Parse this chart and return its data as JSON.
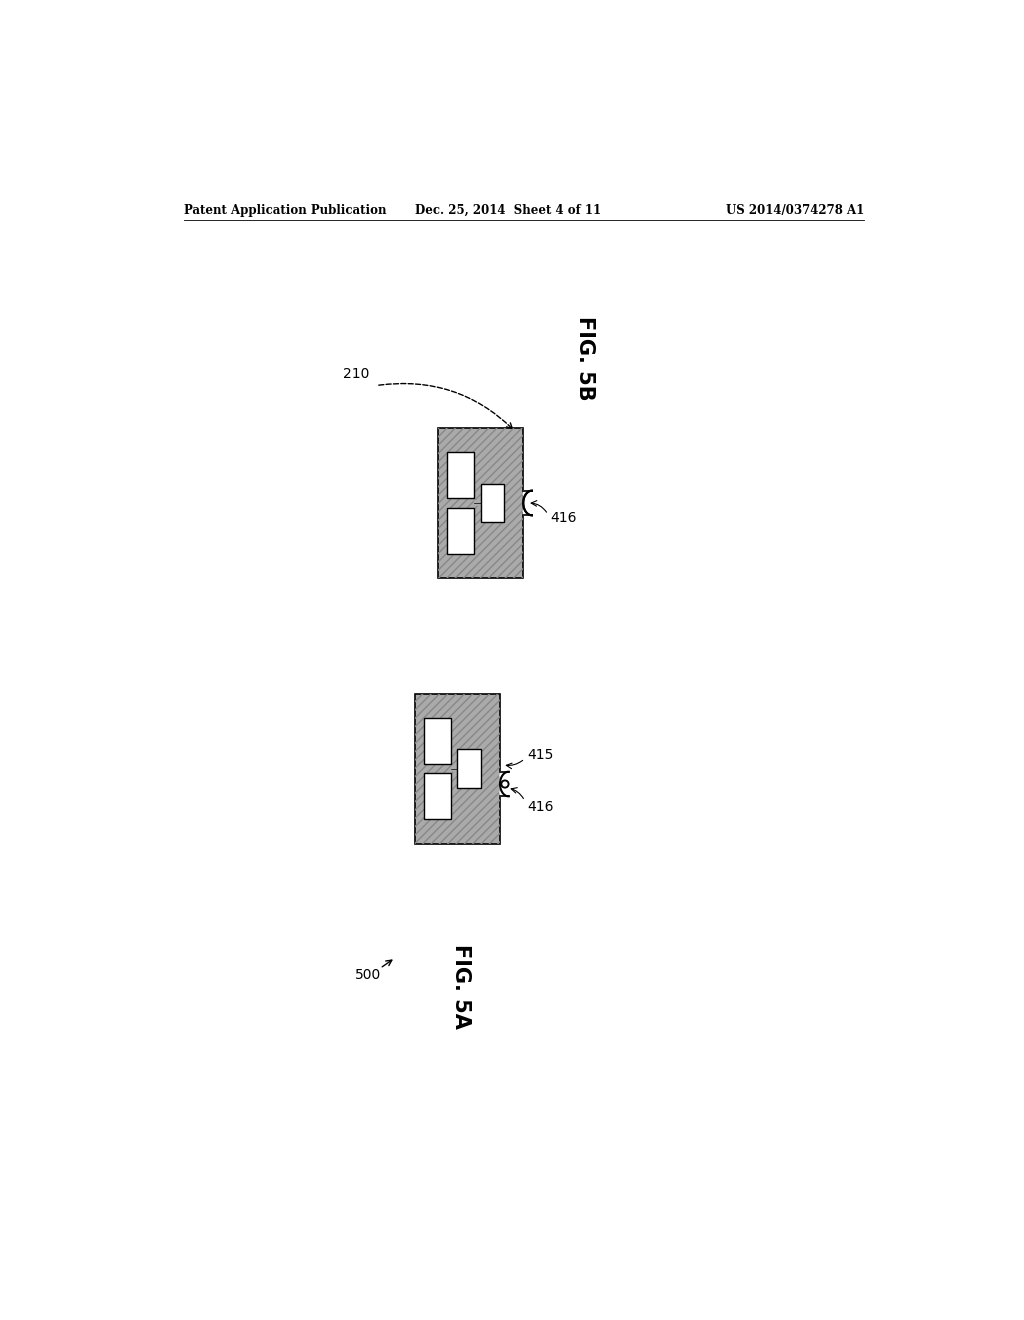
{
  "bg_color": "#ffffff",
  "header_left": "Patent Application Publication",
  "header_mid": "Dec. 25, 2014  Sheet 4 of 11",
  "header_right": "US 2014/0374278 A1",
  "fig5b_label": "FIG. 5B",
  "fig5a_label": "FIG. 5A",
  "label_210": "210",
  "label_500": "500",
  "label_415": "415",
  "label_416": "416",
  "hatch_gray": "#999999",
  "body_gray": "#b0b0b0",
  "bar_gray": "#cccccc"
}
